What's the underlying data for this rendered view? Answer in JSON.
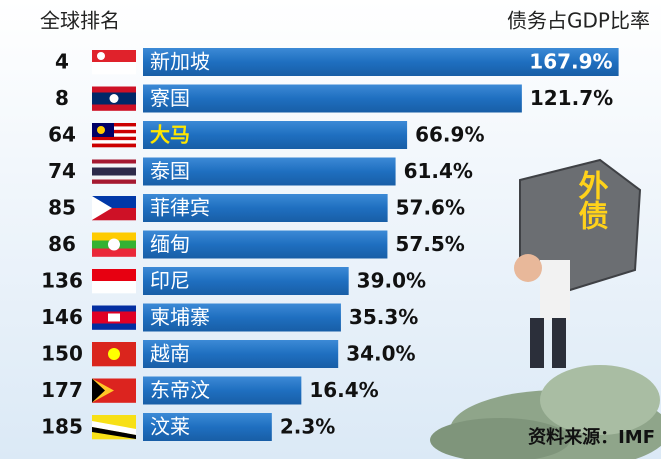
{
  "chart_data": {
    "type": "bar",
    "orientation": "horizontal",
    "rank_header": "全球排名",
    "value_header": "债务占GDP比率",
    "categories": [
      "新加坡",
      "寮国",
      "大马",
      "泰国",
      "菲律宾",
      "缅甸",
      "印尼",
      "柬埔寨",
      "越南",
      "东帝汶",
      "汶莱"
    ],
    "category_label_colors": [
      "#ffffff",
      "#ffffff",
      "#ffe600",
      "#ffffff",
      "#ffffff",
      "#ffffff",
      "#ffffff",
      "#ffffff",
      "#ffffff",
      "#ffffff",
      "#ffffff"
    ],
    "ranks": [
      4,
      8,
      64,
      74,
      85,
      86,
      136,
      146,
      150,
      177,
      185
    ],
    "values": [
      167.9,
      121.7,
      66.9,
      61.4,
      57.6,
      57.5,
      39.0,
      35.3,
      34.0,
      16.4,
      2.3
    ],
    "value_labels": [
      "167.9%",
      "121.7%",
      "66.9%",
      "61.4%",
      "57.6%",
      "57.5%",
      "39.0%",
      "35.3%",
      "34.0%",
      "16.4%",
      "2.3%"
    ],
    "color": "#1f6fc0",
    "xlim": [
      0,
      170
    ],
    "annotation": "外债",
    "source": "资料来源：IMF"
  }
}
